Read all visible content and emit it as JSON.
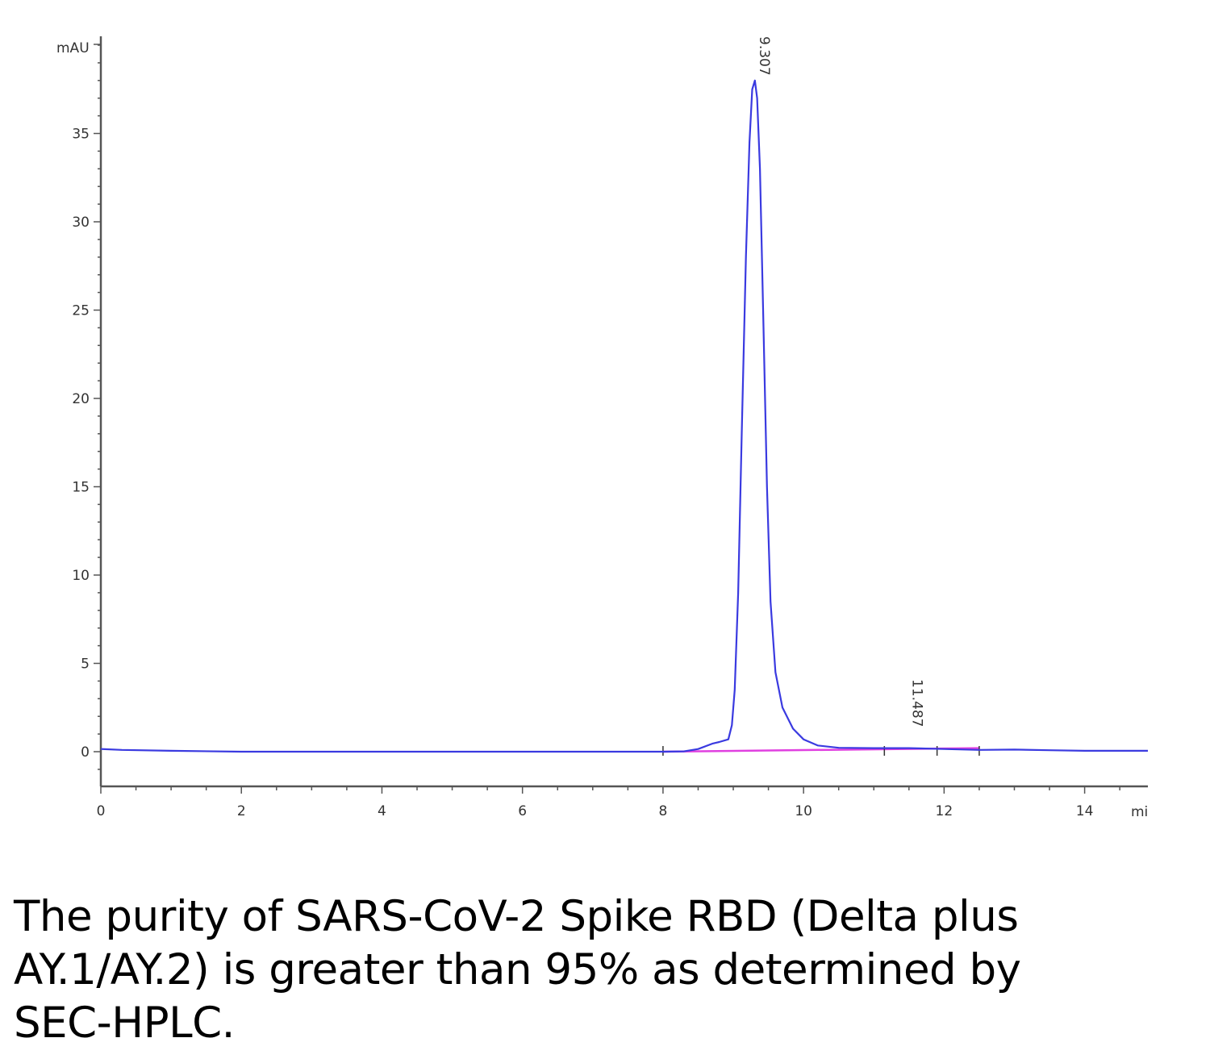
{
  "chart_data": {
    "type": "line",
    "ylabel": "mAU",
    "xlabel": "mi",
    "xlim": [
      0,
      14.9
    ],
    "ylim": [
      -2,
      40
    ],
    "x_ticks": [
      0,
      2,
      4,
      6,
      8,
      10,
      12,
      14
    ],
    "y_ticks": [
      0,
      5,
      10,
      15,
      20,
      25,
      30,
      35
    ],
    "series": [
      {
        "color": "#3a3ae0",
        "points": [
          [
            0,
            0.15
          ],
          [
            0.3,
            0.1
          ],
          [
            1.0,
            0.05
          ],
          [
            2.0,
            0.0
          ],
          [
            4.0,
            0.0
          ],
          [
            6.0,
            0.0
          ],
          [
            7.5,
            0.0
          ],
          [
            8.0,
            0.0
          ],
          [
            8.3,
            0.02
          ],
          [
            8.5,
            0.15
          ],
          [
            8.7,
            0.45
          ],
          [
            8.8,
            0.55
          ],
          [
            8.93,
            0.7
          ],
          [
            8.98,
            1.5
          ],
          [
            9.02,
            3.5
          ],
          [
            9.07,
            9.0
          ],
          [
            9.12,
            18.0
          ],
          [
            9.18,
            28.0
          ],
          [
            9.23,
            34.5
          ],
          [
            9.27,
            37.5
          ],
          [
            9.307,
            38.0
          ],
          [
            9.34,
            37.0
          ],
          [
            9.38,
            33.0
          ],
          [
            9.43,
            24.0
          ],
          [
            9.48,
            15.0
          ],
          [
            9.53,
            8.5
          ],
          [
            9.6,
            4.5
          ],
          [
            9.7,
            2.5
          ],
          [
            9.85,
            1.3
          ],
          [
            10.0,
            0.7
          ],
          [
            10.2,
            0.35
          ],
          [
            10.5,
            0.22
          ],
          [
            11.0,
            0.2
          ],
          [
            11.5,
            0.2
          ],
          [
            12.0,
            0.15
          ],
          [
            12.5,
            0.1
          ],
          [
            13.0,
            0.12
          ],
          [
            13.5,
            0.08
          ],
          [
            14.0,
            0.05
          ],
          [
            14.5,
            0.05
          ],
          [
            14.9,
            0.05
          ]
        ]
      },
      {
        "color": "#e040e0",
        "points": [
          [
            8.0,
            0.0
          ],
          [
            12.5,
            0.2
          ]
        ]
      }
    ],
    "annotations": [
      {
        "label": "9.307",
        "x": 9.307
      },
      {
        "label": "11.487",
        "x": 11.487
      }
    ]
  },
  "caption": "The purity of SARS-CoV-2 Spike RBD (Delta plus AY.1/AY.2) is greater than 95% as determined by SEC-HPLC."
}
